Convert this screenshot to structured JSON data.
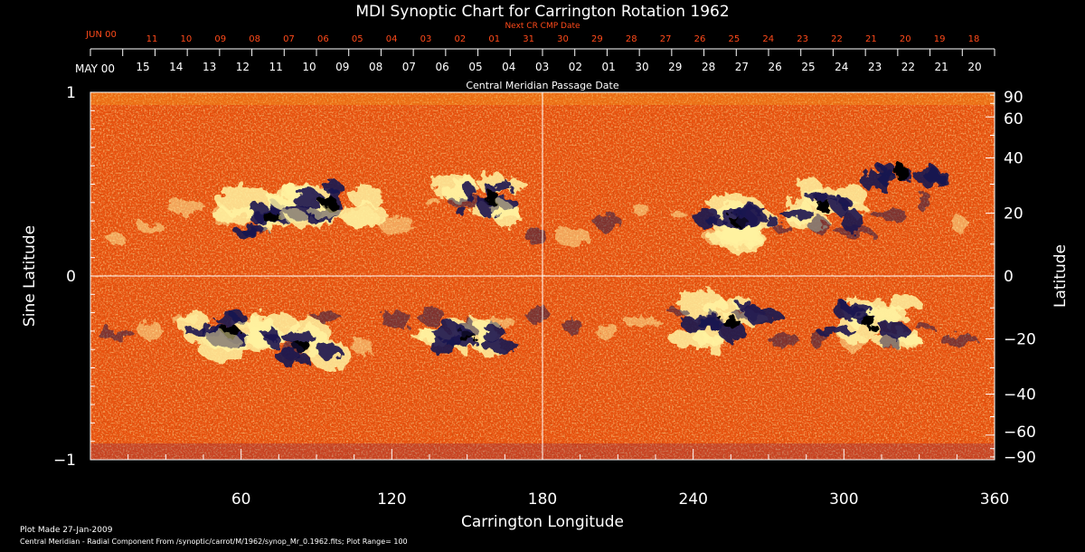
{
  "chart_data": {
    "type": "heatmap",
    "title": "MDI Synoptic Chart for Carrington Rotation 1962",
    "xlabel": "Carrington Longitude",
    "ylabel_left": "Sine Latitude",
    "ylabel_right": "Latitude",
    "xlim": [
      0,
      360
    ],
    "ylim": [
      -1,
      1
    ],
    "x_ticks": [
      60,
      120,
      180,
      240,
      300,
      360
    ],
    "x_tick_labels": [
      "60",
      "120",
      "180",
      "240",
      "300",
      "360"
    ],
    "y_ticks_left": [
      1,
      0,
      -1
    ],
    "y_tick_labels_left": [
      "1",
      "0",
      "−1"
    ],
    "y_ticks_right_deg": [
      90,
      60,
      40,
      20,
      0,
      -20,
      -40,
      -60,
      -90
    ],
    "y_tick_labels_right": [
      "90",
      "60",
      "40",
      "20",
      "0",
      "−20",
      "−40",
      "−60",
      "−90"
    ],
    "top_axis_title": "Central Meridian Passage Date",
    "top_axis_first_label": "MAY 00",
    "top_axis_labels": [
      "15",
      "14",
      "13",
      "12",
      "11",
      "10",
      "09",
      "08",
      "07",
      "06",
      "05",
      "04",
      "03",
      "02",
      "01",
      "30",
      "29",
      "28",
      "27",
      "26",
      "25",
      "24",
      "23",
      "22",
      "21",
      "20"
    ],
    "next_cr_title": "Next CR CMP Date",
    "next_cr_first_label": "JUN 00",
    "next_cr_labels": [
      "11",
      "10",
      "09",
      "08",
      "07",
      "06",
      "05",
      "04",
      "03",
      "02",
      "01",
      "31",
      "30",
      "29",
      "28",
      "27",
      "26",
      "25",
      "24",
      "23",
      "22",
      "21",
      "20",
      "19",
      "18"
    ],
    "background_color": "#e84a10",
    "positive_color": "#fff2a0",
    "negative_color": "#1a1450",
    "active_regions": [
      {
        "lon": 72,
        "lat": 0.32,
        "sign": "mixed"
      },
      {
        "lon": 95,
        "lat": 0.4,
        "sign": "mixed"
      },
      {
        "lon": 160,
        "lat": 0.42,
        "sign": "mixed"
      },
      {
        "lon": 258,
        "lat": 0.3,
        "sign": "mixed"
      },
      {
        "lon": 292,
        "lat": 0.38,
        "sign": "mixed"
      },
      {
        "lon": 323,
        "lat": 0.56,
        "sign": "negative"
      },
      {
        "lon": 56,
        "lat": -0.3,
        "sign": "mixed"
      },
      {
        "lon": 84,
        "lat": -0.38,
        "sign": "mixed"
      },
      {
        "lon": 150,
        "lat": -0.33,
        "sign": "mixed"
      },
      {
        "lon": 255,
        "lat": -0.25,
        "sign": "mixed"
      },
      {
        "lon": 310,
        "lat": -0.25,
        "sign": "mixed"
      }
    ]
  },
  "footer": {
    "plot_made": "Plot Made 27-Jan-2009",
    "description": "Central Meridian - Radial Component From /synoptic/carrot/M/1962/synop_Mr_0.1962.fits; Plot Range=  100"
  }
}
